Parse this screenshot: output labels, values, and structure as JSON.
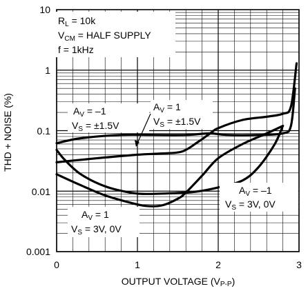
{
  "chart_data": {
    "type": "line",
    "xlabel": "OUTPUT VOLTAGE (V",
    "xlabel_sub": "P-P",
    "xlabel_end": ")",
    "ylabel": "THD + NOISE (%)",
    "xlim": [
      0,
      3
    ],
    "ylim": [
      0.001,
      10
    ],
    "yscale": "log",
    "grid": true,
    "x_ticks": [
      "0",
      "1",
      "2",
      "3"
    ],
    "y_ticks": [
      "0.001",
      "0.01",
      "0.1",
      "1",
      "10"
    ],
    "conditions": {
      "rl_main": "R",
      "rl_sub": "L",
      "rl_value": " = 10k",
      "vcm_main": "V",
      "vcm_sub": "CM",
      "vcm_value": " = HALF SUPPLY",
      "freq": "f = 1kHz"
    },
    "annotations": {
      "s1_av_main": "A",
      "s1_av_sub": "V",
      "s1_av_val": " = –1",
      "s1_vs_main": "V",
      "s1_vs_sub": "S",
      "s1_vs_val": " = ±1.5V",
      "s2_av_main": "A",
      "s2_av_sub": "V",
      "s2_av_val": " = 1",
      "s2_vs_main": "V",
      "s2_vs_sub": "S",
      "s2_vs_val": " = ±1.5V",
      "s3_av_main": "A",
      "s3_av_sub": "V",
      "s3_av_val": " = –1",
      "s3_vs_main": "V",
      "s3_vs_sub": "S",
      "s3_vs_val": " = 3V, 0V",
      "s4_av_main": "A",
      "s4_av_sub": "V",
      "s4_av_val": " = 1",
      "s4_vs_main": "V",
      "s4_vs_sub": "S",
      "s4_vs_val": " = 3V, 0V"
    },
    "series": [
      {
        "x": [
          0.0,
          0.3,
          0.8,
          1.2,
          1.6,
          1.9,
          2.1,
          2.5,
          2.8,
          2.9,
          2.95
        ],
        "y": [
          0.062,
          0.075,
          0.085,
          0.085,
          0.085,
          0.09,
          0.085,
          0.085,
          0.09,
          0.12,
          0.5
        ]
      },
      {
        "x": [
          0.0,
          0.3,
          0.6,
          1.0,
          1.3,
          1.55,
          1.75,
          1.9,
          2.0,
          2.3,
          2.6,
          2.8,
          2.9,
          2.97
        ],
        "y": [
          0.03,
          0.033,
          0.036,
          0.04,
          0.042,
          0.045,
          0.065,
          0.09,
          0.11,
          0.15,
          0.17,
          0.19,
          0.25,
          1.3
        ]
      },
      {
        "x": [
          0.0,
          0.1,
          0.3,
          0.6,
          0.9,
          1.1,
          1.4,
          1.7,
          2.0,
          2.3,
          2.5,
          2.7,
          2.8
        ],
        "y": [
          0.048,
          0.033,
          0.019,
          0.012,
          0.0095,
          0.009,
          0.0092,
          0.0097,
          0.0115,
          0.015,
          0.025,
          0.06,
          0.12
        ]
      },
      {
        "x": [
          0.0,
          0.3,
          0.6,
          0.9,
          1.1,
          1.3,
          1.5,
          1.6,
          1.8,
          2.0,
          2.3,
          2.6,
          2.8
        ],
        "y": [
          0.019,
          0.0125,
          0.0085,
          0.0065,
          0.0057,
          0.0058,
          0.0075,
          0.0095,
          0.018,
          0.035,
          0.06,
          0.09,
          0.12
        ]
      }
    ]
  }
}
